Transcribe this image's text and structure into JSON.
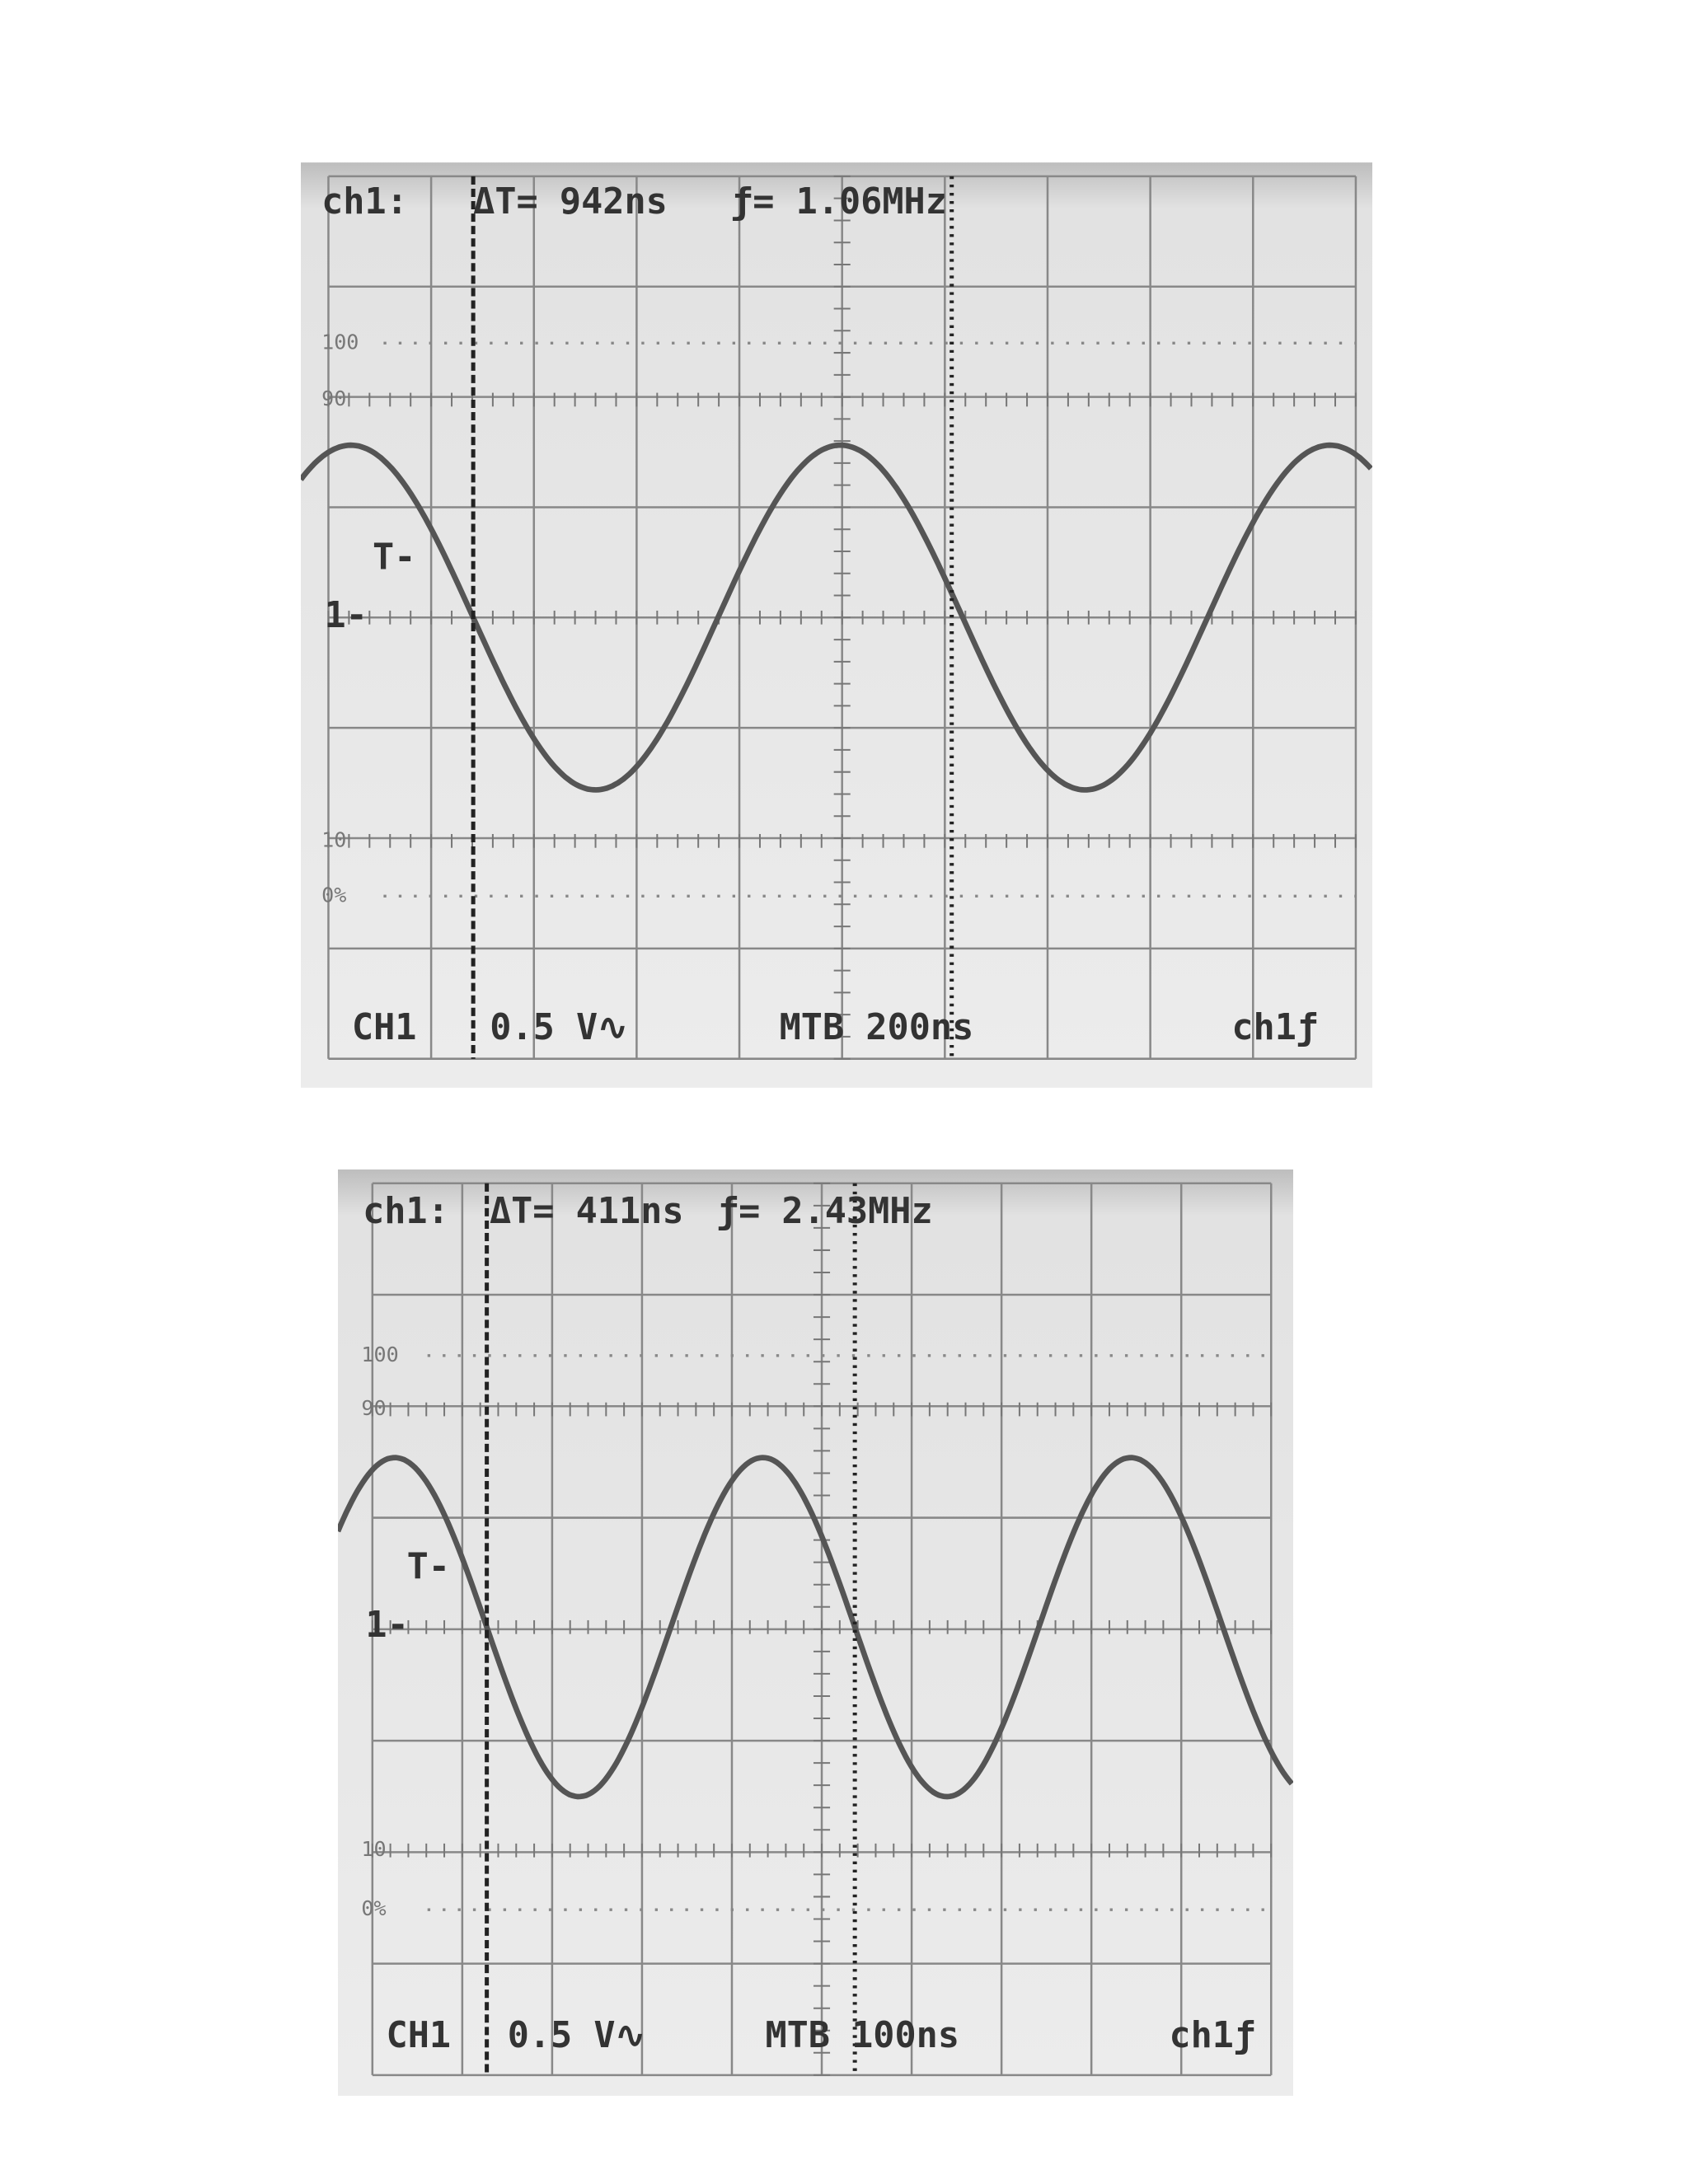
{
  "screens": [
    {
      "header": {
        "channel": "ch1:",
        "delta_t": "ΔT= 942ns",
        "frequency": "ƒ= 1.06MHz"
      },
      "levels": {
        "top": "100",
        "upper": "90",
        "trigger": "T-",
        "reference": "1-",
        "lower": "10",
        "bottom": "0%"
      },
      "footer": {
        "channel": "CH1",
        "volts_per_div": "0.5 V∿",
        "timebase": "MTB 200ns",
        "trigger_source": "ch1ƒ"
      }
    },
    {
      "header": {
        "channel": "ch1:",
        "delta_t": "ΔT= 411ns",
        "frequency": "ƒ= 2.43MHz"
      },
      "levels": {
        "top": "100",
        "upper": "90",
        "trigger": "T-",
        "reference": "1-",
        "lower": "10",
        "bottom": "0%"
      },
      "footer": {
        "channel": "CH1",
        "volts_per_div": "0.5 V∿",
        "timebase": "MTB 100ns",
        "trigger_source": "ch1ƒ"
      }
    }
  ]
}
